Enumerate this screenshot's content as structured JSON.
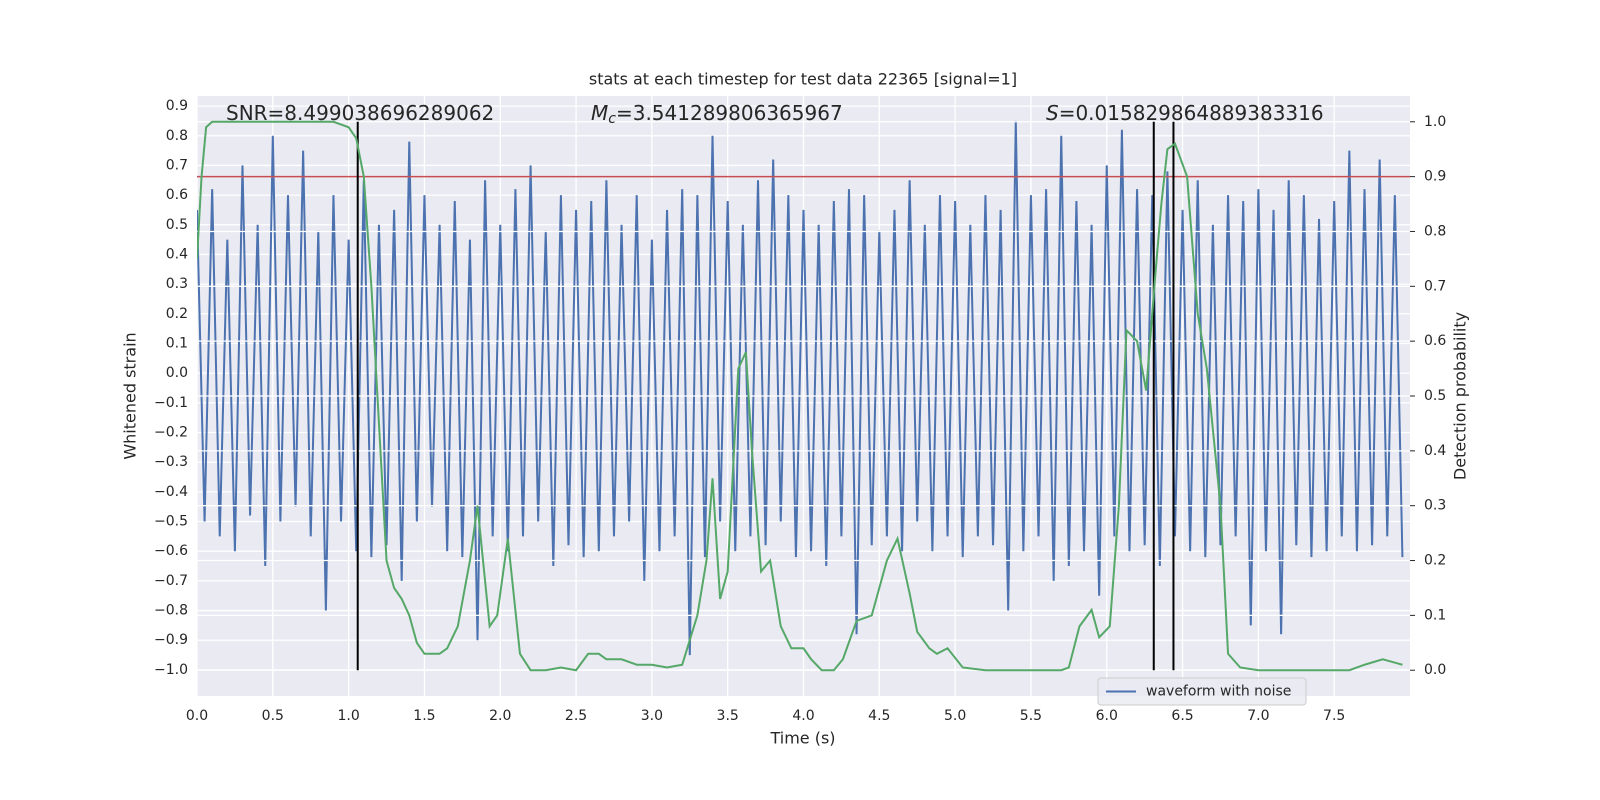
{
  "chart_data": {
    "type": "line",
    "title": "stats at each timestep for test data 22365 [signal=1]",
    "xlabel": "Time (s)",
    "ylabel": "Whitened strain",
    "y2label": "Detection probability",
    "xlim": [
      0,
      8.0
    ],
    "ylim": [
      -1.088,
      0.934
    ],
    "y2lim": [
      -0.047,
      1.047
    ],
    "xticks": [
      {
        "value": 0,
        "label": "0.0"
      },
      0.5,
      {
        "value": 1,
        "label": "1.0"
      },
      1.5,
      {
        "value": 2,
        "label": "2.0"
      },
      2.5,
      {
        "value": 3,
        "label": "3.0"
      },
      3.5,
      {
        "value": 4,
        "label": "4.0"
      },
      4.5,
      {
        "value": 5,
        "label": "5.0"
      },
      5.5,
      {
        "value": 6,
        "label": "6.0"
      },
      6.5,
      {
        "value": 7,
        "label": "7.0"
      },
      7.5
    ],
    "yticks": [
      {
        "value": -1,
        "label": "−1.0"
      },
      {
        "value": -0.9,
        "label": "−0.9"
      },
      {
        "value": -0.8,
        "label": "−0.8"
      },
      {
        "value": -0.7,
        "label": "−0.7"
      },
      {
        "value": -0.6,
        "label": "−0.6"
      },
      {
        "value": -0.5,
        "label": "−0.5"
      },
      {
        "value": -0.4,
        "label": "−0.4"
      },
      {
        "value": -0.3,
        "label": "−0.3"
      },
      {
        "value": -0.2,
        "label": "−0.2"
      },
      {
        "value": -0.1,
        "label": "−0.1"
      },
      {
        "value": 0,
        "label": "0.0"
      },
      0.1,
      0.2,
      0.3,
      0.4,
      0.5,
      0.6,
      0.7,
      0.8,
      0.9
    ],
    "y2ticks": [
      {
        "value": 0,
        "label": "0.0"
      },
      0.1,
      0.2,
      0.3,
      0.4,
      0.5,
      0.6,
      0.7,
      0.8,
      0.9,
      {
        "value": 1,
        "label": "1.0"
      }
    ],
    "grid": true,
    "legend": "lower right",
    "series": [
      {
        "name": "waveform with noise",
        "color": "#4c72b0",
        "x": [
          0,
          0.05,
          0.1,
          0.15,
          0.2,
          0.25,
          0.3,
          0.35,
          0.4,
          0.45,
          0.5,
          0.55,
          0.6,
          0.65,
          0.7,
          0.75,
          0.8,
          0.85,
          0.9,
          0.95,
          1,
          1.05,
          1.1,
          1.15,
          1.2,
          1.25,
          1.3,
          1.35,
          1.4,
          1.45,
          1.5,
          1.55,
          1.6,
          1.65,
          1.7,
          1.75,
          1.8,
          1.85,
          1.9,
          1.95,
          2,
          2.05,
          2.1,
          2.15,
          2.2,
          2.25,
          2.3,
          2.35,
          2.4,
          2.45,
          2.5,
          2.55,
          2.6,
          2.65,
          2.7,
          2.75,
          2.8,
          2.85,
          2.9,
          2.95,
          3,
          3.05,
          3.1,
          3.15,
          3.2,
          3.25,
          3.3,
          3.35,
          3.4,
          3.45,
          3.5,
          3.55,
          3.6,
          3.65,
          3.7,
          3.75,
          3.8,
          3.85,
          3.9,
          3.95,
          4,
          4.05,
          4.1,
          4.15,
          4.2,
          4.25,
          4.3,
          4.35,
          4.4,
          4.45,
          4.5,
          4.55,
          4.6,
          4.65,
          4.7,
          4.75,
          4.8,
          4.85,
          4.9,
          4.95,
          5,
          5.05,
          5.1,
          5.15,
          5.2,
          5.25,
          5.3,
          5.35,
          5.4,
          5.45,
          5.5,
          5.55,
          5.6,
          5.65,
          5.7,
          5.75,
          5.8,
          5.85,
          5.9,
          5.95,
          6,
          6.05,
          6.1,
          6.15,
          6.2,
          6.25,
          6.3,
          6.35,
          6.4,
          6.45,
          6.5,
          6.55,
          6.6,
          6.65,
          6.7,
          6.75,
          6.8,
          6.85,
          6.9,
          6.95,
          7,
          7.05,
          7.1,
          7.15,
          7.2,
          7.25,
          7.3,
          7.35,
          7.4,
          7.45,
          7.5,
          7.55,
          7.6,
          7.65,
          7.7,
          7.75,
          7.8,
          7.85,
          7.9,
          7.95
        ],
        "values": [
          0.55,
          -0.5,
          0.62,
          -0.55,
          0.45,
          -0.6,
          0.7,
          -0.48,
          0.5,
          -0.65,
          0.8,
          -0.5,
          0.6,
          -0.45,
          0.75,
          -0.55,
          0.48,
          -0.8,
          0.6,
          -0.5,
          0.45,
          -0.6,
          0.65,
          -0.62,
          0.5,
          -0.58,
          0.55,
          -0.7,
          0.78,
          -0.5,
          0.6,
          -0.45,
          0.5,
          -0.6,
          0.58,
          -0.62,
          0.45,
          -0.9,
          0.65,
          -0.55,
          0.5,
          -0.6,
          0.62,
          -0.55,
          0.7,
          -0.5,
          0.48,
          -0.65,
          0.6,
          -0.58,
          0.55,
          -0.62,
          0.58,
          -0.6,
          0.65,
          -0.55,
          0.5,
          -0.5,
          0.6,
          -0.7,
          0.45,
          -0.6,
          0.55,
          -0.55,
          0.62,
          -0.95,
          0.6,
          -0.62,
          0.8,
          -0.5,
          0.58,
          -0.6,
          0.5,
          -0.55,
          0.65,
          -0.58,
          0.72,
          -0.5,
          0.6,
          -0.62,
          0.55,
          -0.6,
          0.5,
          -0.65,
          0.58,
          -0.55,
          0.62,
          -0.88,
          0.6,
          -0.58,
          0.48,
          -0.55,
          0.55,
          -0.6,
          0.65,
          -0.5,
          0.5,
          -0.6,
          0.6,
          -0.55,
          0.58,
          -0.62,
          0.5,
          -0.55,
          0.6,
          -0.58,
          0.55,
          -0.8,
          0.85,
          -0.6,
          0.6,
          -0.55,
          0.62,
          -0.7,
          0.8,
          -0.65,
          0.58,
          -0.6,
          0.5,
          -0.75,
          0.7,
          -0.55,
          0.82,
          -0.6,
          0.62,
          -0.58,
          0.6,
          -0.65,
          0.68,
          -0.55,
          0.55,
          -0.6,
          0.65,
          -0.62,
          0.5,
          -0.58,
          0.6,
          -0.55,
          0.58,
          -0.85,
          0.62,
          -0.6,
          0.55,
          -0.88,
          0.65,
          -0.58,
          0.6,
          -0.62,
          0.52,
          -0.6,
          0.58,
          -0.55,
          0.75,
          -0.6,
          0.62,
          -0.58,
          0.72,
          -0.55,
          0.6,
          -0.62
        ]
      },
      {
        "color": "#55a868",
        "axis": "y2",
        "x": [
          0,
          0.03,
          0.06,
          0.1,
          0.9,
          1.0,
          1.05,
          1.1,
          1.15,
          1.2,
          1.25,
          1.3,
          1.35,
          1.4,
          1.45,
          1.5,
          1.6,
          1.65,
          1.72,
          1.8,
          1.85,
          1.93,
          1.98,
          2.05,
          2.13,
          2.2,
          2.3,
          2.4,
          2.5,
          2.58,
          2.65,
          2.7,
          2.8,
          2.9,
          3.0,
          3.1,
          3.2,
          3.3,
          3.36,
          3.4,
          3.45,
          3.5,
          3.57,
          3.62,
          3.66,
          3.72,
          3.78,
          3.85,
          3.92,
          4.0,
          4.05,
          4.12,
          4.2,
          4.26,
          4.35,
          4.45,
          4.55,
          4.62,
          4.7,
          4.75,
          4.83,
          4.88,
          4.95,
          5.05,
          5.2,
          5.5,
          5.7,
          5.75,
          5.82,
          5.9,
          5.95,
          6.02,
          6.08,
          6.13,
          6.2,
          6.26,
          6.32,
          6.36,
          6.4,
          6.45,
          6.53,
          6.6,
          6.66,
          6.75,
          6.8,
          6.88,
          7.0,
          7.6,
          7.7,
          7.82,
          7.95
        ],
        "values": [
          0.75,
          0.9,
          0.99,
          1.0,
          1.0,
          0.99,
          0.97,
          0.9,
          0.7,
          0.45,
          0.2,
          0.15,
          0.13,
          0.1,
          0.05,
          0.03,
          0.03,
          0.04,
          0.08,
          0.2,
          0.3,
          0.08,
          0.1,
          0.24,
          0.03,
          0.0,
          0.0,
          0.005,
          0.0,
          0.03,
          0.03,
          0.02,
          0.02,
          0.01,
          0.01,
          0.005,
          0.01,
          0.1,
          0.2,
          0.35,
          0.13,
          0.18,
          0.55,
          0.58,
          0.4,
          0.18,
          0.2,
          0.08,
          0.04,
          0.04,
          0.02,
          0.0,
          0.0,
          0.02,
          0.09,
          0.1,
          0.2,
          0.24,
          0.14,
          0.07,
          0.04,
          0.03,
          0.04,
          0.005,
          0.0,
          0.0,
          0.0,
          0.005,
          0.08,
          0.11,
          0.06,
          0.08,
          0.3,
          0.62,
          0.6,
          0.51,
          0.72,
          0.85,
          0.95,
          0.96,
          0.9,
          0.65,
          0.55,
          0.3,
          0.03,
          0.005,
          0.0,
          0.0,
          0.01,
          0.02,
          0.01
        ]
      }
    ],
    "threshold": {
      "value": 0.9,
      "axis": "y2",
      "color": "#c44e52"
    },
    "vlines": {
      "x": [
        1.06,
        6.31,
        6.44
      ],
      "y2": [
        0,
        1
      ],
      "color": "#000000"
    },
    "annotations": [
      {
        "text": "SNR=8.499038696289062"
      },
      {
        "symbol": "M",
        "subscript": "c",
        "text": "=3.541289806365967"
      },
      {
        "symbol": "S",
        "text": "=0.015829864889383316"
      }
    ]
  }
}
